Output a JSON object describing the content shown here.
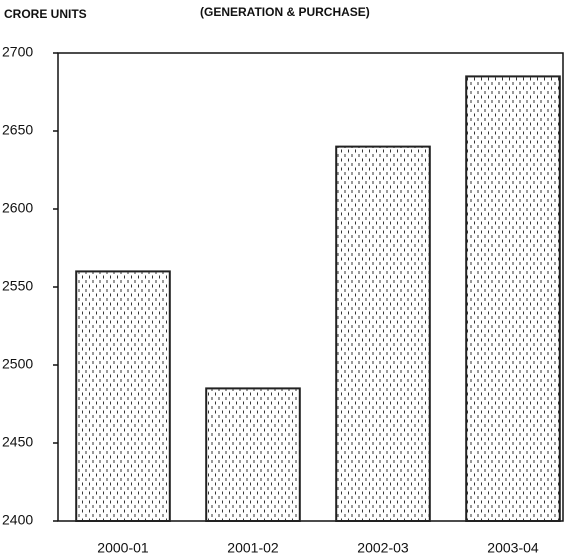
{
  "chart_data": {
    "type": "bar",
    "title": "(GENERATION & PURCHASE)",
    "y_label": "CRORE UNITS",
    "categories": [
      "2000-01",
      "2001-02",
      "2002-03",
      "2003-04"
    ],
    "values": [
      2560,
      2485,
      2640,
      2685
    ],
    "color": "#222222",
    "ylim": [
      2400,
      2700
    ],
    "yticks": [
      2400,
      2450,
      2500,
      2550,
      2600,
      2650,
      2700
    ],
    "grid": false
  }
}
